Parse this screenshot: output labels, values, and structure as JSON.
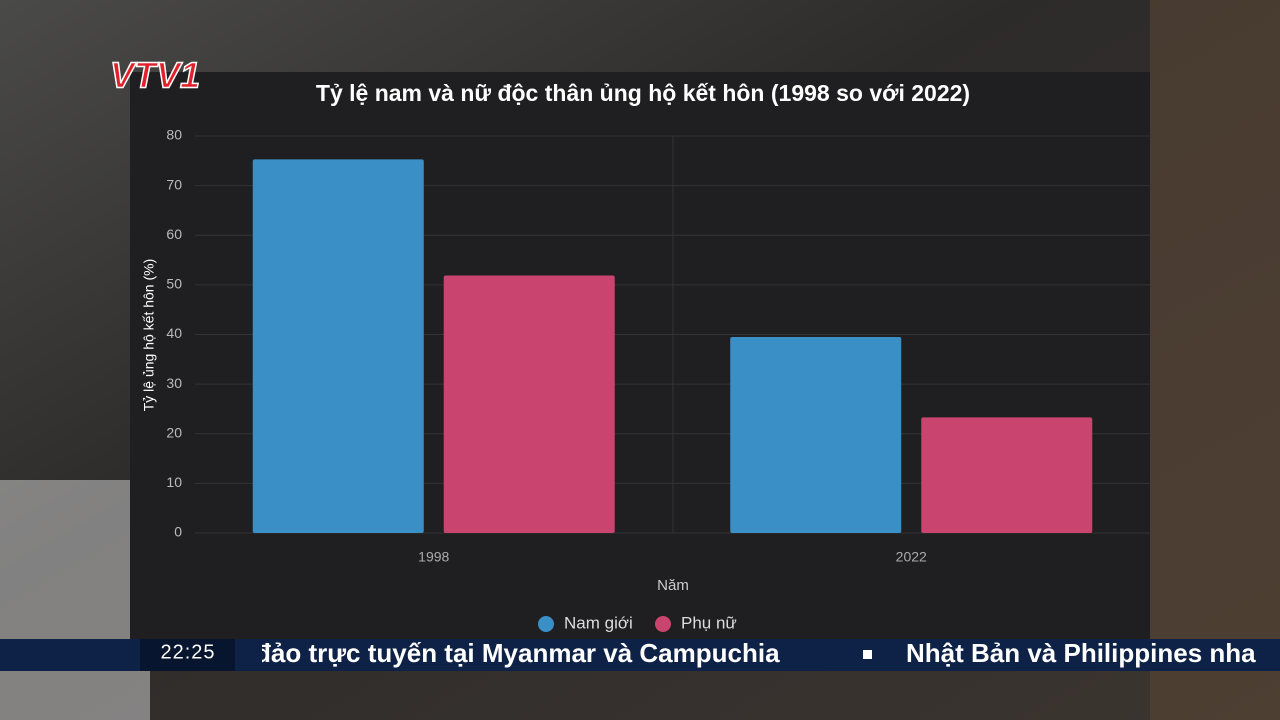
{
  "chart_data": {
    "type": "bar",
    "title": "Tỷ lệ nam và nữ độc thân ủng hộ kết hôn (1998 so với 2022)",
    "categories": [
      "1998",
      "2022"
    ],
    "series": [
      {
        "name": "Nam giới",
        "color": "#3a8fc7",
        "values": [
          75.3,
          39.5
        ]
      },
      {
        "name": "Phụ nữ",
        "color": "#c9456f",
        "values": [
          51.9,
          23.3
        ]
      }
    ],
    "x_label": "Năm",
    "y_label": "Tỷ lệ ủng hộ kết hôn (%)",
    "ylim": [
      0,
      80
    ],
    "yticks": [
      0,
      10,
      20,
      30,
      40,
      50,
      60,
      70,
      80
    ],
    "grid": true,
    "legend": "bottom"
  },
  "overlay": {
    "logo": "VTV1",
    "clock": "22:25",
    "ticker": [
      "đảo trực tuyến tại Myanmar và Campuchia",
      "Nhật Bản và Philippines nha"
    ]
  }
}
